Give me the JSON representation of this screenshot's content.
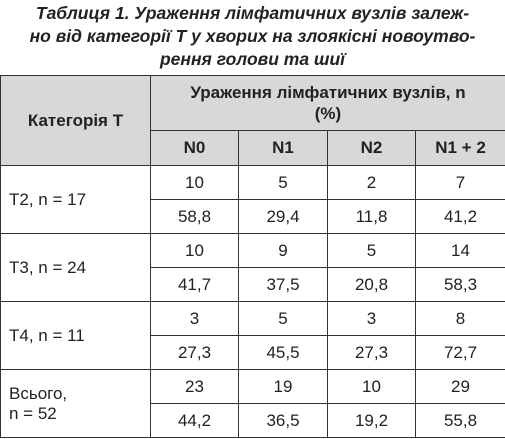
{
  "title": {
    "lines": [
      "Таблиця 1. Ураження лімфатичних вузлів залеж-",
      "но від категорії Т у хворих на злоякісні новоутво-",
      "рення голови та шиї"
    ]
  },
  "table": {
    "header": {
      "category": "Категорія Т",
      "group": "Ураження лімфатичних вузлів, n (%)",
      "columns": [
        "N0",
        "N1",
        "N2",
        "N1 + 2"
      ]
    },
    "groups": [
      {
        "label": "T2, n = 17",
        "rows": [
          [
            "10",
            "5",
            "2",
            "7"
          ],
          [
            "58,8",
            "29,4",
            "11,8",
            "41,2"
          ]
        ]
      },
      {
        "label": "T3, n = 24",
        "rows": [
          [
            "10",
            "9",
            "5",
            "14"
          ],
          [
            "41,7",
            "37,5",
            "20,8",
            "58,3"
          ]
        ]
      },
      {
        "label": "T4, n = 11",
        "rows": [
          [
            "3",
            "5",
            "3",
            "8"
          ],
          [
            "27,3",
            "45,5",
            "27,3",
            "72,7"
          ]
        ]
      },
      {
        "label": "Всього,\nn = 52",
        "rows": [
          [
            "23",
            "19",
            "10",
            "29"
          ],
          [
            "44,2",
            "36,5",
            "19,2",
            "55,8"
          ]
        ]
      }
    ]
  }
}
